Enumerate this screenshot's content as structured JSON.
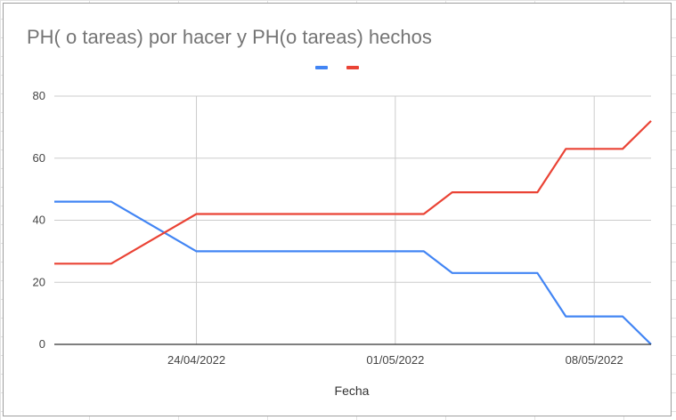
{
  "chart_data": {
    "type": "line",
    "title": "PH( o tareas) por hacer y PH(o tareas) hechos",
    "xlabel": "Fecha",
    "ylabel": "",
    "ylim": [
      0,
      80
    ],
    "yticks": [
      "0",
      "20",
      "40",
      "60",
      "80"
    ],
    "xlim": [
      "2022-04-19",
      "2022-05-10"
    ],
    "xticks": [
      {
        "label": "24/04/2022",
        "date": "2022-04-24"
      },
      {
        "label": "01/05/2022",
        "date": "2022-05-01"
      },
      {
        "label": "08/05/2022",
        "date": "2022-05-08"
      }
    ],
    "grid": true,
    "legend": "top-center",
    "series": [
      {
        "color": "#4285f4",
        "points": [
          [
            "2022-04-19",
            46
          ],
          [
            "2022-04-21",
            46
          ],
          [
            "2022-04-24",
            30
          ],
          [
            "2022-05-02",
            30
          ],
          [
            "2022-05-03",
            23
          ],
          [
            "2022-05-06",
            23
          ],
          [
            "2022-05-07",
            9
          ],
          [
            "2022-05-09",
            9
          ],
          [
            "2022-05-10",
            0
          ]
        ]
      },
      {
        "color": "#ea4335",
        "points": [
          [
            "2022-04-19",
            26
          ],
          [
            "2022-04-21",
            26
          ],
          [
            "2022-04-24",
            42
          ],
          [
            "2022-05-02",
            42
          ],
          [
            "2022-05-03",
            49
          ],
          [
            "2022-05-06",
            49
          ],
          [
            "2022-05-07",
            63
          ],
          [
            "2022-05-09",
            63
          ],
          [
            "2022-05-10",
            72
          ]
        ]
      }
    ]
  }
}
